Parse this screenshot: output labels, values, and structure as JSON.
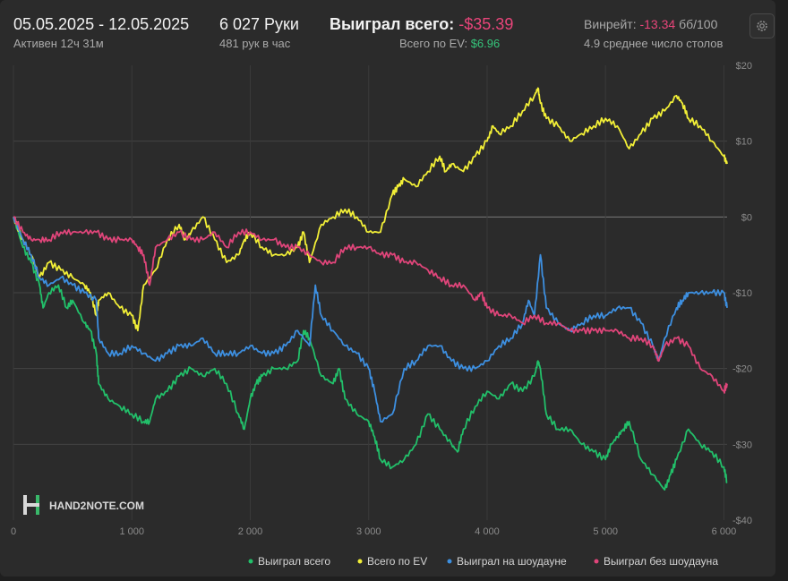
{
  "header": {
    "date_range": "05.05.2025 - 12.05.2025",
    "active": "Активен 12ч 31м",
    "hands": "6 027 Руки",
    "hands_per_hour": "481 рук в час",
    "won_total_label": "Выиграл всего:",
    "won_total_value": "-$35.39",
    "ev_label": "Всего по EV:",
    "ev_value": "$6.96",
    "winrate_label": "Винрейт:",
    "winrate_value": "-13.34",
    "winrate_unit": "бб/100",
    "tables": "4.9 среднее число столов"
  },
  "logo": "HAND2NOTE.COM",
  "colors": {
    "green": "#22c06a",
    "yellow": "#f2ef37",
    "blue": "#3d8fe0",
    "pink": "#e0457a",
    "negative": "#e8457a",
    "positive": "#35c47a"
  },
  "chart_data": {
    "type": "line",
    "title": "",
    "xlabel": "",
    "ylabel": "",
    "xlim": [
      0,
      6027
    ],
    "ylim": [
      -40,
      20
    ],
    "x_ticks": [
      0,
      1000,
      2000,
      3000,
      4000,
      5000,
      6000
    ],
    "x_tick_labels": [
      "0",
      "1 000",
      "2 000",
      "3 000",
      "4 000",
      "5 000",
      "6 000"
    ],
    "y_ticks": [
      20,
      10,
      0,
      -10,
      -20,
      -30,
      -40
    ],
    "y_tick_labels": [
      "$20",
      "$10",
      "$0",
      "-$10",
      "-$20",
      "-$30",
      "-$40"
    ],
    "grid": true,
    "legend_position": "bottom-right",
    "series": [
      {
        "name": "Выиграл всего",
        "color_key": "green",
        "x": [
          0,
          80,
          150,
          220,
          250,
          300,
          380,
          450,
          500,
          600,
          650,
          700,
          720,
          800,
          900,
          1000,
          1100,
          1150,
          1200,
          1300,
          1400,
          1500,
          1600,
          1700,
          1800,
          1900,
          1950,
          2000,
          2050,
          2100,
          2200,
          2300,
          2400,
          2450,
          2500,
          2600,
          2700,
          2750,
          2800,
          2900,
          3000,
          3050,
          3100,
          3200,
          3300,
          3400,
          3500,
          3600,
          3700,
          3750,
          3800,
          3900,
          4000,
          4100,
          4200,
          4300,
          4400,
          4430,
          4450,
          4500,
          4600,
          4700,
          4800,
          4900,
          5000,
          5050,
          5100,
          5150,
          5200,
          5300,
          5400,
          5500,
          5550,
          5600,
          5700,
          5800,
          5900,
          6000,
          6027
        ],
        "y": [
          0,
          -4,
          -6,
          -9,
          -12,
          -10,
          -9,
          -12,
          -11,
          -14,
          -15,
          -18,
          -22,
          -24,
          -25,
          -26,
          -27,
          -27,
          -24,
          -23,
          -21,
          -20,
          -21,
          -20,
          -22,
          -26,
          -28,
          -24,
          -22,
          -21,
          -20,
          -20,
          -19,
          -15,
          -16,
          -21,
          -22,
          -20,
          -24,
          -26,
          -27,
          -29,
          -32,
          -33,
          -32,
          -30,
          -26,
          -28,
          -30,
          -31,
          -28,
          -25,
          -23,
          -24,
          -22,
          -23,
          -21,
          -19,
          -20,
          -26,
          -28,
          -28,
          -30,
          -31,
          -32,
          -30,
          -29,
          -28,
          -27,
          -32,
          -34,
          -36,
          -34,
          -32,
          -28,
          -30,
          -31,
          -33,
          -35
        ]
      },
      {
        "name": "Всего по EV",
        "color_key": "yellow",
        "x": [
          0,
          80,
          150,
          220,
          300,
          400,
          500,
          600,
          650,
          700,
          720,
          800,
          900,
          1000,
          1050,
          1100,
          1200,
          1300,
          1400,
          1450,
          1500,
          1600,
          1700,
          1800,
          1900,
          1950,
          2000,
          2100,
          2200,
          2300,
          2400,
          2450,
          2500,
          2600,
          2700,
          2800,
          2900,
          3000,
          3100,
          3200,
          3250,
          3300,
          3400,
          3500,
          3600,
          3650,
          3700,
          3800,
          3900,
          4000,
          4050,
          4100,
          4200,
          4300,
          4400,
          4430,
          4450,
          4500,
          4600,
          4700,
          4800,
          4900,
          5000,
          5100,
          5200,
          5300,
          5400,
          5500,
          5600,
          5650,
          5700,
          5800,
          5900,
          6000,
          6027
        ],
        "y": [
          0,
          -3,
          -5,
          -8,
          -6,
          -7,
          -8,
          -9,
          -10,
          -13,
          -11,
          -10,
          -12,
          -13,
          -15,
          -9,
          -7,
          -3,
          -1,
          -3,
          -2,
          0,
          -3,
          -6,
          -5,
          -3,
          -2,
          -4,
          -5,
          -5,
          -4,
          -2,
          -6,
          -1,
          0,
          1,
          0,
          -2,
          -2,
          3,
          4,
          5,
          4,
          6,
          8,
          6,
          7,
          6,
          8,
          10,
          12,
          11,
          12,
          14,
          16,
          17,
          15,
          13,
          12,
          10,
          11,
          12,
          13,
          12,
          9,
          11,
          13,
          14,
          16,
          15,
          13,
          12,
          10,
          8,
          7
        ]
      },
      {
        "name": "Выиграл на шоудауне",
        "color_key": "blue",
        "x": [
          0,
          80,
          150,
          220,
          300,
          400,
          500,
          600,
          700,
          720,
          800,
          900,
          1000,
          1100,
          1200,
          1300,
          1400,
          1500,
          1600,
          1700,
          1800,
          1900,
          2000,
          2100,
          2200,
          2300,
          2400,
          2500,
          2550,
          2600,
          2700,
          2800,
          2900,
          3000,
          3050,
          3100,
          3200,
          3300,
          3400,
          3500,
          3600,
          3700,
          3800,
          3900,
          4000,
          4100,
          4200,
          4300,
          4350,
          4400,
          4450,
          4500,
          4600,
          4700,
          4800,
          4900,
          5000,
          5100,
          5200,
          5300,
          5400,
          5450,
          5500,
          5600,
          5650,
          5700,
          5800,
          5900,
          6000,
          6027
        ],
        "y": [
          0,
          -3,
          -5,
          -8,
          -9,
          -8,
          -9,
          -10,
          -11,
          -16,
          -18,
          -18,
          -17,
          -18,
          -19,
          -18,
          -17,
          -17,
          -16,
          -18,
          -18,
          -18,
          -17,
          -18,
          -18,
          -17,
          -15,
          -17,
          -9,
          -13,
          -15,
          -17,
          -18,
          -20,
          -23,
          -27,
          -26,
          -20,
          -19,
          -17,
          -17,
          -19,
          -20,
          -20,
          -19,
          -17,
          -16,
          -14,
          -11,
          -13,
          -5,
          -12,
          -14,
          -15,
          -14,
          -13,
          -13,
          -12,
          -12,
          -14,
          -17,
          -19,
          -16,
          -12,
          -11,
          -10,
          -10,
          -10,
          -10,
          -12
        ]
      },
      {
        "name": "Выиграл без шоудауна",
        "color_key": "pink",
        "x": [
          0,
          80,
          150,
          220,
          300,
          400,
          500,
          600,
          700,
          800,
          900,
          1000,
          1050,
          1100,
          1150,
          1200,
          1300,
          1400,
          1500,
          1600,
          1700,
          1800,
          1900,
          2000,
          2100,
          2200,
          2300,
          2400,
          2500,
          2600,
          2700,
          2800,
          2900,
          3000,
          3100,
          3200,
          3300,
          3400,
          3500,
          3600,
          3700,
          3800,
          3900,
          3950,
          4000,
          4100,
          4200,
          4300,
          4400,
          4500,
          4600,
          4700,
          4800,
          4900,
          5000,
          5100,
          5200,
          5300,
          5400,
          5450,
          5500,
          5600,
          5700,
          5800,
          5900,
          6000,
          6027
        ],
        "y": [
          0,
          -2,
          -3,
          -3,
          -3,
          -2,
          -2,
          -2,
          -2,
          -3,
          -3,
          -3,
          -4,
          -5,
          -9,
          -4,
          -3,
          -2,
          -3,
          -3,
          -2,
          -4,
          -2,
          -2,
          -3,
          -3,
          -4,
          -4,
          -5,
          -6,
          -6,
          -4,
          -4,
          -4,
          -5,
          -5,
          -6,
          -6,
          -7,
          -8,
          -9,
          -9,
          -11,
          -10,
          -12,
          -13,
          -13,
          -14,
          -13,
          -14,
          -14,
          -15,
          -15,
          -15,
          -15,
          -15,
          -16,
          -16,
          -17,
          -19,
          -17,
          -16,
          -17,
          -20,
          -21,
          -23,
          -22
        ]
      }
    ]
  }
}
